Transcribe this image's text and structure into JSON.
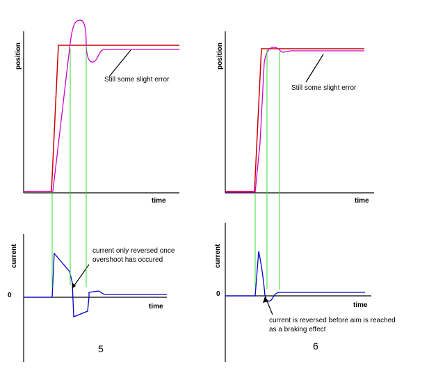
{
  "colors": {
    "target": "#cc0000",
    "actual": "#cc00cc",
    "current": "#0000cc",
    "marker": "#33dd33",
    "axis": "#000000"
  },
  "panels": [
    {
      "number": "5",
      "position_plot": {
        "ylabel": "position",
        "xlabel": "time",
        "annotation": "Still some slight error"
      },
      "current_plot": {
        "ylabel": "current",
        "xlabel": "time",
        "zero_label": "0",
        "annotation_lines": [
          "current only reversed once",
          "overshoot has occured"
        ]
      }
    },
    {
      "number": "6",
      "position_plot": {
        "ylabel": "position",
        "xlabel": "time",
        "annotation": "Still some slight error"
      },
      "current_plot": {
        "ylabel": "current",
        "xlabel": "time",
        "zero_label": "0",
        "annotation_lines": [
          "current is reversed before aim is reached",
          "as a braking effect"
        ]
      }
    }
  ]
}
